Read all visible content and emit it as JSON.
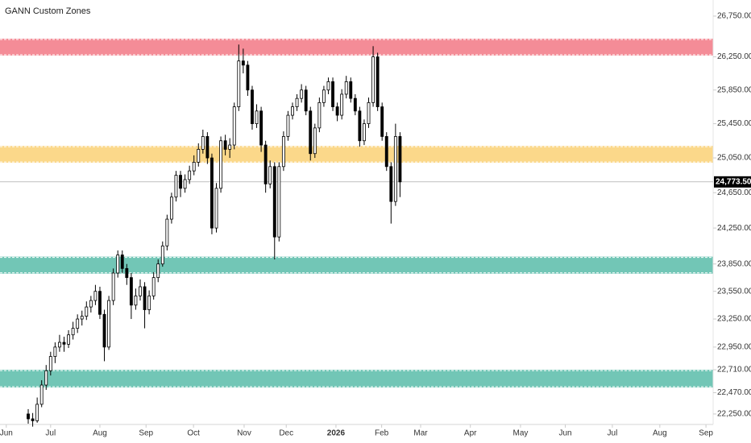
{
  "chart_data": {
    "type": "candlestick",
    "title": "GANN Custom Zones",
    "yscale": "log",
    "ylim": [
      22142,
      26950
    ],
    "yticks": [
      {
        "value": 26750,
        "label": "26,750.00"
      },
      {
        "value": 26250,
        "label": "26,250.00"
      },
      {
        "value": 25850,
        "label": "25,850.00"
      },
      {
        "value": 25450,
        "label": "25,450.00"
      },
      {
        "value": 25050,
        "label": "25,050.00"
      },
      {
        "value": 24650,
        "label": "24,650.00"
      },
      {
        "value": 24250,
        "label": "24,250.00"
      },
      {
        "value": 23850,
        "label": "23,850.00"
      },
      {
        "value": 23550,
        "label": "23,550.00"
      },
      {
        "value": 23250,
        "label": "23,250.00"
      },
      {
        "value": 22950,
        "label": "22,950.00"
      },
      {
        "value": 22710,
        "label": "22,710.00"
      },
      {
        "value": 22470,
        "label": "22,470.00"
      },
      {
        "value": 22250,
        "label": "22,250.00"
      }
    ],
    "xlim": [
      -6.3,
      152.9
    ],
    "xticks": [
      {
        "value": -4.9,
        "label": "Jun"
      },
      {
        "value": 5.0,
        "label": "Jul"
      },
      {
        "value": 16.0,
        "label": "Aug"
      },
      {
        "value": 26.3,
        "label": "Sep"
      },
      {
        "value": 36.9,
        "label": "Oct"
      },
      {
        "value": 48.2,
        "label": "Nov"
      },
      {
        "value": 57.6,
        "label": "Dec"
      },
      {
        "value": 68.7,
        "label": "2026"
      },
      {
        "value": 78.9,
        "label": "Feb"
      },
      {
        "value": 87.6,
        "label": "Mar"
      },
      {
        "value": 98.7,
        "label": "Apr"
      },
      {
        "value": 109.9,
        "label": "May"
      },
      {
        "value": 119.9,
        "label": "Jun"
      },
      {
        "value": 130.4,
        "label": "Jul"
      },
      {
        "value": 141.0,
        "label": "Aug"
      },
      {
        "value": 151.3,
        "label": "Sep"
      }
    ],
    "zones": [
      {
        "from": 26266,
        "to": 26472,
        "color": "#f48c97"
      },
      {
        "from": 24994,
        "to": 25190,
        "color": "#fbd88a"
      },
      {
        "from": 23743,
        "to": 23931,
        "color": "#72c6b6"
      },
      {
        "from": 22524,
        "to": 22710,
        "color": "#72c6b6"
      }
    ],
    "last_price": {
      "value": 24773.5,
      "label": "24,773.50"
    },
    "candles": [
      {
        "o": 22250,
        "h": 22300,
        "l": 22150,
        "c": 22200
      },
      {
        "o": 22200,
        "h": 22260,
        "l": 22120,
        "c": 22180
      },
      {
        "o": 22180,
        "h": 22420,
        "l": 22160,
        "c": 22350
      },
      {
        "o": 22350,
        "h": 22600,
        "l": 22320,
        "c": 22550
      },
      {
        "o": 22550,
        "h": 22760,
        "l": 22500,
        "c": 22700
      },
      {
        "o": 22700,
        "h": 22900,
        "l": 22650,
        "c": 22850
      },
      {
        "o": 22850,
        "h": 23000,
        "l": 22780,
        "c": 22950
      },
      {
        "o": 22950,
        "h": 23080,
        "l": 22900,
        "c": 23000
      },
      {
        "o": 23000,
        "h": 23060,
        "l": 22900,
        "c": 22980
      },
      {
        "o": 22980,
        "h": 23130,
        "l": 22940,
        "c": 23080
      },
      {
        "o": 23080,
        "h": 23220,
        "l": 23030,
        "c": 23150
      },
      {
        "o": 23150,
        "h": 23300,
        "l": 23100,
        "c": 23250
      },
      {
        "o": 23250,
        "h": 23340,
        "l": 23180,
        "c": 23280
      },
      {
        "o": 23280,
        "h": 23440,
        "l": 23240,
        "c": 23380
      },
      {
        "o": 23380,
        "h": 23500,
        "l": 23320,
        "c": 23450
      },
      {
        "o": 23450,
        "h": 23620,
        "l": 23400,
        "c": 23550
      },
      {
        "o": 23550,
        "h": 23600,
        "l": 23250,
        "c": 23300
      },
      {
        "o": 23300,
        "h": 23350,
        "l": 22800,
        "c": 22950
      },
      {
        "o": 22950,
        "h": 23500,
        "l": 22920,
        "c": 23450
      },
      {
        "o": 23450,
        "h": 23800,
        "l": 23400,
        "c": 23750
      },
      {
        "o": 23750,
        "h": 24000,
        "l": 23700,
        "c": 23950
      },
      {
        "o": 23950,
        "h": 24000,
        "l": 23750,
        "c": 23800
      },
      {
        "o": 23800,
        "h": 23850,
        "l": 23620,
        "c": 23700
      },
      {
        "o": 23700,
        "h": 23750,
        "l": 23250,
        "c": 23400
      },
      {
        "o": 23400,
        "h": 23580,
        "l": 23350,
        "c": 23500
      },
      {
        "o": 23500,
        "h": 23680,
        "l": 23450,
        "c": 23600
      },
      {
        "o": 23600,
        "h": 23650,
        "l": 23150,
        "c": 23350
      },
      {
        "o": 23350,
        "h": 23560,
        "l": 23300,
        "c": 23500
      },
      {
        "o": 23500,
        "h": 23760,
        "l": 23460,
        "c": 23700
      },
      {
        "o": 23700,
        "h": 23900,
        "l": 23650,
        "c": 23850
      },
      {
        "o": 23850,
        "h": 24100,
        "l": 23820,
        "c": 24050
      },
      {
        "o": 24050,
        "h": 24400,
        "l": 24000,
        "c": 24350
      },
      {
        "o": 24350,
        "h": 24650,
        "l": 24300,
        "c": 24600
      },
      {
        "o": 24600,
        "h": 24900,
        "l": 24550,
        "c": 24850
      },
      {
        "o": 24850,
        "h": 24900,
        "l": 24600,
        "c": 24700
      },
      {
        "o": 24700,
        "h": 24860,
        "l": 24650,
        "c": 24800
      },
      {
        "o": 24800,
        "h": 24960,
        "l": 24750,
        "c": 24900
      },
      {
        "o": 24900,
        "h": 25080,
        "l": 24850,
        "c": 25000
      },
      {
        "o": 25000,
        "h": 25220,
        "l": 24950,
        "c": 25150
      },
      {
        "o": 25150,
        "h": 25380,
        "l": 25100,
        "c": 25300
      },
      {
        "o": 25300,
        "h": 25350,
        "l": 24980,
        "c": 25050
      },
      {
        "o": 25050,
        "h": 25100,
        "l": 24180,
        "c": 24250
      },
      {
        "o": 24250,
        "h": 24760,
        "l": 24200,
        "c": 24700
      },
      {
        "o": 24700,
        "h": 25300,
        "l": 24650,
        "c": 25250
      },
      {
        "o": 25250,
        "h": 25320,
        "l": 25080,
        "c": 25150
      },
      {
        "o": 25150,
        "h": 25280,
        "l": 25050,
        "c": 25200
      },
      {
        "o": 25200,
        "h": 25700,
        "l": 25150,
        "c": 25650
      },
      {
        "o": 25650,
        "h": 26400,
        "l": 25600,
        "c": 26200
      },
      {
        "o": 26200,
        "h": 26350,
        "l": 26050,
        "c": 26150
      },
      {
        "o": 26150,
        "h": 26200,
        "l": 25780,
        "c": 25850
      },
      {
        "o": 25850,
        "h": 25900,
        "l": 25380,
        "c": 25450
      },
      {
        "o": 25450,
        "h": 25680,
        "l": 25400,
        "c": 25600
      },
      {
        "o": 25600,
        "h": 25650,
        "l": 25120,
        "c": 25200
      },
      {
        "o": 25200,
        "h": 25250,
        "l": 24650,
        "c": 24750
      },
      {
        "o": 24750,
        "h": 25020,
        "l": 24700,
        "c": 24950
      },
      {
        "o": 24950,
        "h": 25000,
        "l": 23900,
        "c": 24150
      },
      {
        "o": 24150,
        "h": 25000,
        "l": 24100,
        "c": 24950
      },
      {
        "o": 24950,
        "h": 25360,
        "l": 24900,
        "c": 25300
      },
      {
        "o": 25300,
        "h": 25600,
        "l": 25250,
        "c": 25550
      },
      {
        "o": 25550,
        "h": 25700,
        "l": 25500,
        "c": 25650
      },
      {
        "o": 25650,
        "h": 25800,
        "l": 25600,
        "c": 25750
      },
      {
        "o": 25750,
        "h": 25920,
        "l": 25700,
        "c": 25850
      },
      {
        "o": 25850,
        "h": 25900,
        "l": 25550,
        "c": 25600
      },
      {
        "o": 25600,
        "h": 25650,
        "l": 25020,
        "c": 25100
      },
      {
        "o": 25100,
        "h": 25450,
        "l": 25050,
        "c": 25400
      },
      {
        "o": 25400,
        "h": 25760,
        "l": 25350,
        "c": 25700
      },
      {
        "o": 25700,
        "h": 25900,
        "l": 25650,
        "c": 25850
      },
      {
        "o": 25850,
        "h": 26000,
        "l": 25800,
        "c": 25950
      },
      {
        "o": 25950,
        "h": 26000,
        "l": 25600,
        "c": 25650
      },
      {
        "o": 25650,
        "h": 25700,
        "l": 25480,
        "c": 25550
      },
      {
        "o": 25550,
        "h": 25860,
        "l": 25500,
        "c": 25800
      },
      {
        "o": 25800,
        "h": 26020,
        "l": 25750,
        "c": 25950
      },
      {
        "o": 25950,
        "h": 26000,
        "l": 25700,
        "c": 25750
      },
      {
        "o": 25750,
        "h": 25800,
        "l": 25550,
        "c": 25600
      },
      {
        "o": 25600,
        "h": 25650,
        "l": 25180,
        "c": 25250
      },
      {
        "o": 25250,
        "h": 25500,
        "l": 25200,
        "c": 25450
      },
      {
        "o": 25450,
        "h": 25760,
        "l": 25400,
        "c": 25700
      },
      {
        "o": 25700,
        "h": 26380,
        "l": 25650,
        "c": 26250
      },
      {
        "o": 26250,
        "h": 26300,
        "l": 25600,
        "c": 25650
      },
      {
        "o": 25650,
        "h": 25700,
        "l": 25250,
        "c": 25300
      },
      {
        "o": 25300,
        "h": 25350,
        "l": 24900,
        "c": 24950
      },
      {
        "o": 24950,
        "h": 25000,
        "l": 24300,
        "c": 24550
      },
      {
        "o": 24550,
        "h": 25450,
        "l": 24500,
        "c": 25300
      },
      {
        "o": 25300,
        "h": 25350,
        "l": 24600,
        "c": 24773.5
      }
    ]
  }
}
